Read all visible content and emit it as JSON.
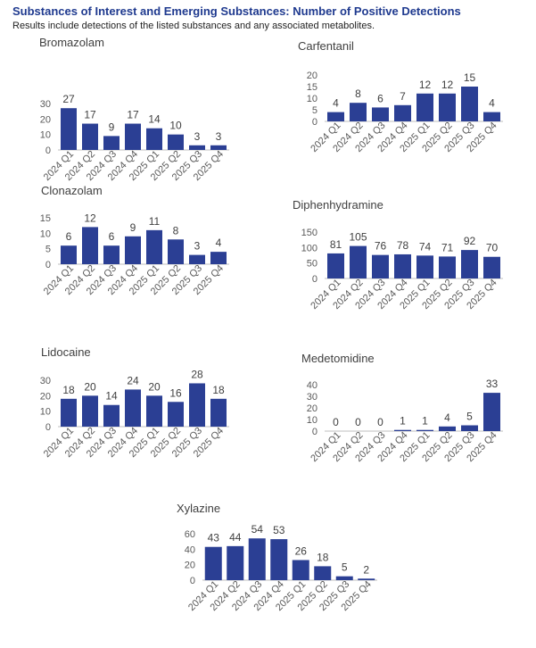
{
  "header": {
    "title": "Substances of Interest and Emerging Substances: Number of Positive Detections",
    "subtitle": "Results include detections of the listed substances and any associated metabolites."
  },
  "colors": {
    "bar": "#2b3f94",
    "axis": "#bfbfbf",
    "text": "#404040"
  },
  "chart_data": [
    {
      "type": "bar",
      "title": "Bromazolam",
      "categories": [
        "2024 Q1",
        "2024 Q2",
        "2024 Q3",
        "2024 Q4",
        "2025 Q1",
        "2025 Q2",
        "2025 Q3",
        "2025 Q4"
      ],
      "values": [
        27,
        17,
        9,
        17,
        14,
        10,
        3,
        3
      ],
      "yticks": [
        0,
        10,
        20,
        30
      ],
      "ylim": [
        0,
        30
      ]
    },
    {
      "type": "bar",
      "title": "Carfentanil",
      "categories": [
        "2024 Q1",
        "2024 Q2",
        "2024 Q3",
        "2024 Q4",
        "2025 Q1",
        "2025 Q2",
        "2025 Q3",
        "2025 Q4"
      ],
      "values": [
        4,
        8,
        6,
        7,
        12,
        12,
        15,
        4
      ],
      "yticks": [
        0,
        5,
        10,
        15,
        20
      ],
      "ylim": [
        0,
        20
      ]
    },
    {
      "type": "bar",
      "title": "Clonazolam",
      "categories": [
        "2024 Q1",
        "2024 Q2",
        "2024 Q3",
        "2024 Q4",
        "2025 Q1",
        "2025 Q2",
        "2025 Q3",
        "2025 Q4"
      ],
      "values": [
        6,
        12,
        6,
        9,
        11,
        8,
        3,
        4
      ],
      "yticks": [
        0,
        5,
        10,
        15
      ],
      "ylim": [
        0,
        15
      ]
    },
    {
      "type": "bar",
      "title": "Diphenhydramine",
      "categories": [
        "2024 Q1",
        "2024 Q2",
        "2024 Q3",
        "2024 Q4",
        "2025 Q1",
        "2025 Q2",
        "2025 Q3",
        "2025 Q4"
      ],
      "values": [
        81,
        105,
        76,
        78,
        74,
        71,
        92,
        70
      ],
      "yticks": [
        0,
        50,
        100,
        150
      ],
      "ylim": [
        0,
        150
      ]
    },
    {
      "type": "bar",
      "title": "Lidocaine",
      "categories": [
        "2024 Q1",
        "2024 Q2",
        "2024 Q3",
        "2024 Q4",
        "2025 Q1",
        "2025 Q2",
        "2025 Q3",
        "2025 Q4"
      ],
      "values": [
        18,
        20,
        14,
        24,
        20,
        16,
        28,
        18
      ],
      "yticks": [
        0,
        10,
        20,
        30
      ],
      "ylim": [
        0,
        30
      ]
    },
    {
      "type": "bar",
      "title": "Medetomidine",
      "categories": [
        "2024 Q1",
        "2024 Q2",
        "2024 Q3",
        "2024 Q4",
        "2025 Q1",
        "2025 Q2",
        "2025 Q3",
        "2025 Q4"
      ],
      "values": [
        0,
        0,
        0,
        1,
        1,
        4,
        5,
        33
      ],
      "yticks": [
        0,
        10,
        20,
        30,
        40
      ],
      "ylim": [
        0,
        40
      ]
    },
    {
      "type": "bar",
      "title": "Xylazine",
      "categories": [
        "2024 Q1",
        "2024 Q2",
        "2024 Q3",
        "2024 Q4",
        "2025 Q1",
        "2025 Q2",
        "2025 Q3",
        "2025 Q4"
      ],
      "values": [
        43,
        44,
        54,
        53,
        26,
        18,
        5,
        2
      ],
      "yticks": [
        0,
        20,
        40,
        60
      ],
      "ylim": [
        0,
        60
      ]
    }
  ]
}
